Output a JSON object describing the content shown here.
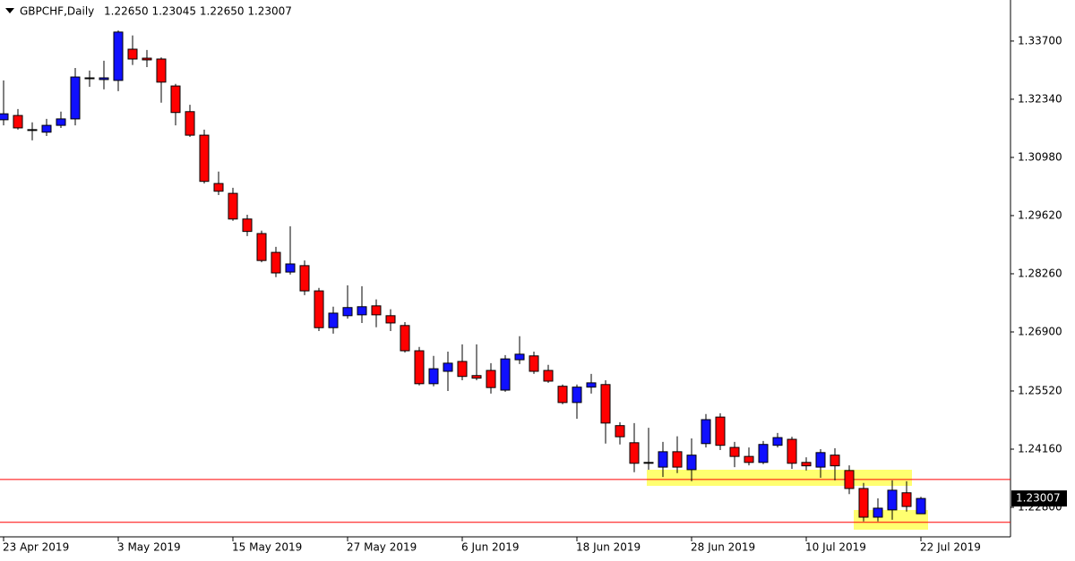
{
  "chart_data": {
    "type": "candlestick",
    "title": "GBPCHF,Daily",
    "subtitle": "1.22650 1.23045 1.22650 1.23007",
    "categories": [
      "23 Apr 2019",
      null,
      null,
      null,
      null,
      null,
      null,
      null,
      "3 May 2019",
      null,
      null,
      null,
      null,
      null,
      null,
      null,
      "15 May 2019",
      null,
      null,
      null,
      null,
      null,
      null,
      null,
      "27 May 2019",
      null,
      null,
      null,
      null,
      null,
      null,
      null,
      "6 Jun 2019",
      null,
      null,
      null,
      null,
      null,
      null,
      null,
      "18 Jun 2019",
      null,
      null,
      null,
      null,
      null,
      null,
      null,
      "28 Jun 2019",
      null,
      null,
      null,
      null,
      null,
      null,
      null,
      "10 Jul 2019",
      null,
      null,
      null,
      null,
      null,
      null,
      null,
      "22 Jul 2019"
    ],
    "open": [
      1.3186,
      1.3196,
      1.3163,
      1.3157,
      1.3173,
      1.3188,
      1.3282,
      1.328,
      1.3278,
      1.3351,
      1.333,
      1.3328,
      1.3265,
      1.3205,
      1.315,
      1.3037,
      1.3014,
      1.2954,
      1.292,
      1.2876,
      1.283,
      1.2845,
      1.2786,
      1.27,
      1.2728,
      1.273,
      1.2751,
      1.2728,
      1.2705,
      1.2646,
      1.2569,
      1.2598,
      1.2621,
      1.2588,
      1.26,
      1.2554,
      1.2625,
      1.2634,
      1.26,
      1.2563,
      1.2525,
      1.2561,
      1.2567,
      1.2471,
      1.2431,
      1.2385,
      1.2374,
      1.241,
      1.2368,
      1.2429,
      1.2491,
      1.242,
      1.2399,
      1.2385,
      1.2425,
      1.2439,
      1.2385,
      1.2374,
      1.2402,
      1.2366,
      1.2324,
      1.2257,
      1.2274,
      1.2314,
      1.2265
    ],
    "high": [
      1.3278,
      1.3211,
      1.318,
      1.3188,
      1.3205,
      1.3307,
      1.3301,
      1.3324,
      1.3395,
      1.3383,
      1.3349,
      1.3332,
      1.327,
      1.3221,
      1.3163,
      1.3065,
      1.3027,
      1.2964,
      1.2927,
      1.2889,
      1.2937,
      1.2857,
      1.2793,
      1.2749,
      1.2799,
      1.2797,
      1.2766,
      1.2743,
      1.2713,
      1.2655,
      1.2634,
      1.2644,
      1.2661,
      1.2661,
      1.2617,
      1.2636,
      1.268,
      1.2644,
      1.2613,
      1.2567,
      1.2567,
      1.2592,
      1.2577,
      1.2479,
      1.2477,
      1.2466,
      1.2433,
      1.2446,
      1.2441,
      1.2498,
      1.25,
      1.2433,
      1.242,
      1.2435,
      1.2454,
      1.2445,
      1.2397,
      1.2416,
      1.2418,
      1.2378,
      1.2337,
      1.2301,
      1.2343,
      1.2341,
      1.23045
    ],
    "low": [
      1.3173,
      1.3163,
      1.3138,
      1.3148,
      1.3167,
      1.3173,
      1.3263,
      1.3257,
      1.3253,
      1.3314,
      1.3309,
      1.3226,
      1.3173,
      1.3146,
      1.3037,
      1.301,
      1.295,
      1.2914,
      1.2853,
      1.2818,
      1.2824,
      1.2776,
      1.2692,
      1.2686,
      1.2721,
      1.2711,
      1.2701,
      1.2692,
      1.2642,
      1.2565,
      1.2563,
      1.2552,
      1.2577,
      1.2577,
      1.2546,
      1.255,
      1.2615,
      1.2592,
      1.2571,
      1.2521,
      1.2487,
      1.2546,
      1.2429,
      1.2427,
      1.2362,
      1.2368,
      1.2351,
      1.236,
      1.2341,
      1.242,
      1.2414,
      1.2374,
      1.2378,
      1.2381,
      1.242,
      1.237,
      1.2366,
      1.2349,
      1.2343,
      1.2311,
      1.2247,
      1.2247,
      1.2251,
      1.227,
      1.2265
    ],
    "close": [
      1.32,
      1.3167,
      1.3161,
      1.3173,
      1.3188,
      1.3286,
      1.3284,
      1.3284,
      1.3391,
      1.3328,
      1.3326,
      1.3274,
      1.3203,
      1.315,
      1.3042,
      1.3019,
      1.2954,
      1.2925,
      1.2857,
      1.2828,
      1.2849,
      1.2786,
      1.27,
      1.2734,
      1.2747,
      1.2749,
      1.273,
      1.2711,
      1.2646,
      1.2569,
      1.2604,
      1.2617,
      1.2586,
      1.2582,
      1.256,
      1.2627,
      1.2638,
      1.2598,
      1.2575,
      1.2525,
      1.2561,
      1.2571,
      1.2477,
      1.2445,
      1.2383,
      1.2383,
      1.241,
      1.2374,
      1.2402,
      1.2485,
      1.2425,
      1.2399,
      1.2385,
      1.2427,
      1.2443,
      1.2383,
      1.2377,
      1.2408,
      1.2377,
      1.2324,
      1.2257,
      1.2278,
      1.232,
      1.2282,
      1.23007
    ],
    "up_color": "#1010ff",
    "down_color": "#ff0000",
    "ylim": [
      1.2211,
      1.3466
    ],
    "yticks": [
      {
        "value": 1.337,
        "label": "1.33700"
      },
      {
        "value": 1.3234,
        "label": "1.32340"
      },
      {
        "value": 1.3098,
        "label": "1.30980"
      },
      {
        "value": 1.2962,
        "label": "1.29620"
      },
      {
        "value": 1.2826,
        "label": "1.28260"
      },
      {
        "value": 1.269,
        "label": "1.26900"
      },
      {
        "value": 1.2552,
        "label": "1.25520"
      },
      {
        "value": 1.2416,
        "label": "1.24160"
      },
      {
        "value": 1.228,
        "label": "1.22800"
      }
    ],
    "hlines": [
      1.2345,
      1.2245
    ],
    "hline_color": "#ff0000",
    "last_price": 1.23007
  }
}
